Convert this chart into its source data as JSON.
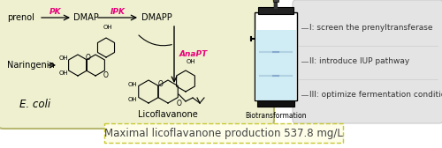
{
  "bg_color": "#ffffff",
  "ecoli_bg": "#eef0d0",
  "ecoli_border": "#b8b870",
  "gray_box_bg": "#e4e4e4",
  "gray_box_border": "#cccccc",
  "dashed_box_color": "#c8c832",
  "dashed_box_bg": "#fdfde8",
  "dashed_text": "Maximal licoflavanone production 537.8 mg/L",
  "dashed_text_color": "#444444",
  "dashed_text_fontsize": 8.5,
  "pink_color": "#e8007a",
  "red_arrow_color": "#cc0000",
  "prenol_label": "prenol",
  "naringenin_label": "Naringenin",
  "dmap_label": "DMAP",
  "dmapp_label": "DMAPP",
  "ecoli_label": "E. coli",
  "licoflavanone_label": "Licoflavanone",
  "biotransformation_label": "Biotransformation",
  "pk_label": "PK",
  "ipk_label": "IPK",
  "anapt_label": "AnaPT",
  "step1": "I: screen the prenyltransferase",
  "step2": "II: introduce IUP pathway",
  "step3": "III: optimize fermentation conditions",
  "label_fontsize": 7,
  "small_fontsize": 6.5,
  "ecoli_fontsize": 8.5
}
